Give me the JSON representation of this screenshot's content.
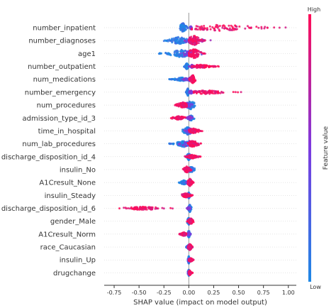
{
  "chart_data": {
    "type": "scatter",
    "subtype": "shap-beeswarm",
    "xlabel": "SHAP value (impact on model output)",
    "xlim": [
      -0.85,
      1.08
    ],
    "xticks": [
      "-0.75",
      "-0.50",
      "-0.25",
      "0.00",
      "0.25",
      "0.50",
      "0.75",
      "1.00"
    ],
    "xtick_values": [
      -0.75,
      -0.5,
      -0.25,
      0.0,
      0.25,
      0.5,
      0.75,
      1.0
    ],
    "zero_line": true,
    "colorbar": {
      "title": "Feature value",
      "high_label": "High",
      "low_label": "Low",
      "low_color": "#1e88e5",
      "high_color": "#ff0d57"
    },
    "features": [
      {
        "name": "number_inpatient",
        "low": {
          "min": -0.1,
          "max": -0.01,
          "center": -0.06,
          "spread": 0.9
        },
        "high": {
          "min": 0.03,
          "max": 1.03,
          "center": 0.3,
          "spread": 0.6
        },
        "mid": {
          "min": 0.01,
          "max": 0.03,
          "center": 0.02,
          "spread": 0.3
        }
      },
      {
        "name": "number_diagnoses",
        "low": {
          "min": -0.25,
          "max": 0.0,
          "center": -0.1,
          "spread": 0.7
        },
        "high": {
          "min": 0.0,
          "max": 0.17,
          "center": 0.05,
          "spread": 0.95
        },
        "mid": {
          "min": -0.05,
          "max": 0.22,
          "center": 0.05,
          "spread": 0.5
        }
      },
      {
        "name": "age1",
        "low": {
          "min": -0.3,
          "max": 0.0,
          "center": -0.08,
          "spread": 0.75
        },
        "high": {
          "min": 0.0,
          "max": 0.17,
          "center": 0.05,
          "spread": 0.95
        },
        "mid": {
          "min": -0.1,
          "max": 0.15,
          "center": 0.02,
          "spread": 0.6
        }
      },
      {
        "name": "number_outpatient",
        "low": {
          "min": -0.05,
          "max": 0.0,
          "center": -0.02,
          "spread": 0.6
        },
        "high": {
          "min": 0.03,
          "max": 0.31,
          "center": 0.12,
          "spread": 0.35
        },
        "mid": {
          "min": 0.0,
          "max": 0.06,
          "center": 0.03,
          "spread": 0.3
        }
      },
      {
        "name": "num_medications",
        "low": {
          "min": -0.2,
          "max": -0.01,
          "center": -0.07,
          "spread": 0.35
        },
        "high": {
          "min": 0.0,
          "max": 0.07,
          "center": 0.04,
          "spread": 0.8
        },
        "mid": {
          "min": -0.08,
          "max": 0.06,
          "center": 0.01,
          "spread": 0.4
        }
      },
      {
        "name": "number_emergency",
        "low": {
          "min": -0.03,
          "max": 0.0,
          "center": -0.01,
          "spread": 0.7
        },
        "high": {
          "min": 0.05,
          "max": 0.54,
          "center": 0.18,
          "spread": 0.35
        },
        "mid": {
          "min": 0.0,
          "max": 0.05,
          "center": 0.02,
          "spread": 0.3
        }
      },
      {
        "name": "num_procedures",
        "low": {
          "min": -0.06,
          "max": 0.07,
          "center": 0.02,
          "spread": 0.8
        },
        "high": {
          "min": -0.16,
          "max": -0.02,
          "center": -0.06,
          "spread": 0.55
        },
        "mid": {
          "min": -0.08,
          "max": 0.05,
          "center": -0.01,
          "spread": 0.5
        }
      },
      {
        "name": "admission_type_id_3",
        "low": {
          "min": -0.02,
          "max": 0.06,
          "center": 0.02,
          "spread": 0.5
        },
        "high": {
          "min": -0.2,
          "max": -0.03,
          "center": -0.1,
          "spread": 0.35
        },
        "mid": {
          "min": -0.03,
          "max": 0.04,
          "center": 0.01,
          "spread": 0.3
        }
      },
      {
        "name": "time_in_hospital",
        "low": {
          "min": -0.07,
          "max": 0.06,
          "center": -0.01,
          "spread": 0.75
        },
        "high": {
          "min": 0.0,
          "max": 0.15,
          "center": 0.05,
          "spread": 0.45
        },
        "mid": {
          "min": -0.05,
          "max": 0.08,
          "center": 0.01,
          "spread": 0.5
        }
      },
      {
        "name": "num_lab_procedures",
        "low": {
          "min": -0.2,
          "max": 0.0,
          "center": -0.05,
          "spread": 0.6
        },
        "high": {
          "min": -0.02,
          "max": 0.13,
          "center": 0.04,
          "spread": 0.6
        },
        "mid": {
          "min": -0.12,
          "max": 0.1,
          "center": 0.0,
          "spread": 0.6
        }
      },
      {
        "name": "discharge_disposition_id_4",
        "low": {
          "min": -0.02,
          "max": 0.03,
          "center": 0.0,
          "spread": 0.7
        },
        "high": {
          "min": -0.05,
          "max": 0.12,
          "center": 0.03,
          "spread": 0.35
        },
        "mid": {
          "min": -0.02,
          "max": 0.04,
          "center": 0.01,
          "spread": 0.3
        }
      },
      {
        "name": "insulin_No",
        "low": {
          "min": -0.04,
          "max": 0.06,
          "center": 0.02,
          "spread": 0.55
        },
        "high": {
          "min": -0.06,
          "max": 0.03,
          "center": -0.02,
          "spread": 0.6
        },
        "mid": {
          "min": -0.03,
          "max": 0.03,
          "center": 0.0,
          "spread": 0.3
        }
      },
      {
        "name": "A1Cresult_None",
        "low": {
          "min": -0.1,
          "max": -0.01,
          "center": -0.05,
          "spread": 0.4
        },
        "high": {
          "min": -0.01,
          "max": 0.05,
          "center": 0.01,
          "spread": 0.75
        },
        "mid": {
          "min": -0.03,
          "max": 0.03,
          "center": 0.0,
          "spread": 0.3
        }
      },
      {
        "name": "insulin_Steady",
        "low": {
          "min": -0.02,
          "max": 0.02,
          "center": 0.0,
          "spread": 0.6
        },
        "high": {
          "min": -0.08,
          "max": 0.04,
          "center": -0.03,
          "spread": 0.4
        },
        "mid": {
          "min": -0.02,
          "max": 0.02,
          "center": 0.0,
          "spread": 0.3
        }
      },
      {
        "name": "discharge_disposition_id_6",
        "low": {
          "min": -0.01,
          "max": 0.03,
          "center": 0.01,
          "spread": 0.7
        },
        "high": {
          "min": -0.73,
          "max": -0.15,
          "center": -0.45,
          "spread": 0.3
        },
        "mid": {
          "min": -0.02,
          "max": 0.02,
          "center": 0.0,
          "spread": 0.3
        }
      },
      {
        "name": "gender_Male",
        "low": {
          "min": -0.02,
          "max": 0.03,
          "center": 0.0,
          "spread": 0.65
        },
        "high": {
          "min": -0.02,
          "max": 0.05,
          "center": 0.02,
          "spread": 0.55
        },
        "mid": {
          "min": -0.02,
          "max": 0.03,
          "center": 0.01,
          "spread": 0.3
        }
      },
      {
        "name": "A1Cresult_Norm",
        "low": {
          "min": -0.01,
          "max": 0.02,
          "center": 0.0,
          "spread": 0.7
        },
        "high": {
          "min": -0.1,
          "max": -0.02,
          "center": -0.05,
          "spread": 0.35
        },
        "mid": {
          "min": -0.02,
          "max": 0.02,
          "center": 0.0,
          "spread": 0.3
        }
      },
      {
        "name": "race_Caucasian",
        "low": {
          "min": -0.03,
          "max": 0.02,
          "center": 0.0,
          "spread": 0.45
        },
        "high": {
          "min": -0.01,
          "max": 0.04,
          "center": 0.01,
          "spread": 0.6
        },
        "mid": {
          "min": -0.02,
          "max": 0.02,
          "center": 0.0,
          "spread": 0.3
        }
      },
      {
        "name": "insulin_Up",
        "low": {
          "min": -0.01,
          "max": 0.02,
          "center": 0.0,
          "spread": 0.7
        },
        "high": {
          "min": 0.0,
          "max": 0.05,
          "center": 0.02,
          "spread": 0.35
        },
        "mid": {
          "min": -0.01,
          "max": 0.02,
          "center": 0.0,
          "spread": 0.3
        }
      },
      {
        "name": "drugchange",
        "low": {
          "min": -0.01,
          "max": 0.02,
          "center": 0.0,
          "spread": 0.6
        },
        "high": {
          "min": 0.0,
          "max": 0.04,
          "center": 0.01,
          "spread": 0.45
        },
        "mid": {
          "min": -0.01,
          "max": 0.02,
          "center": 0.0,
          "spread": 0.3
        }
      }
    ]
  }
}
